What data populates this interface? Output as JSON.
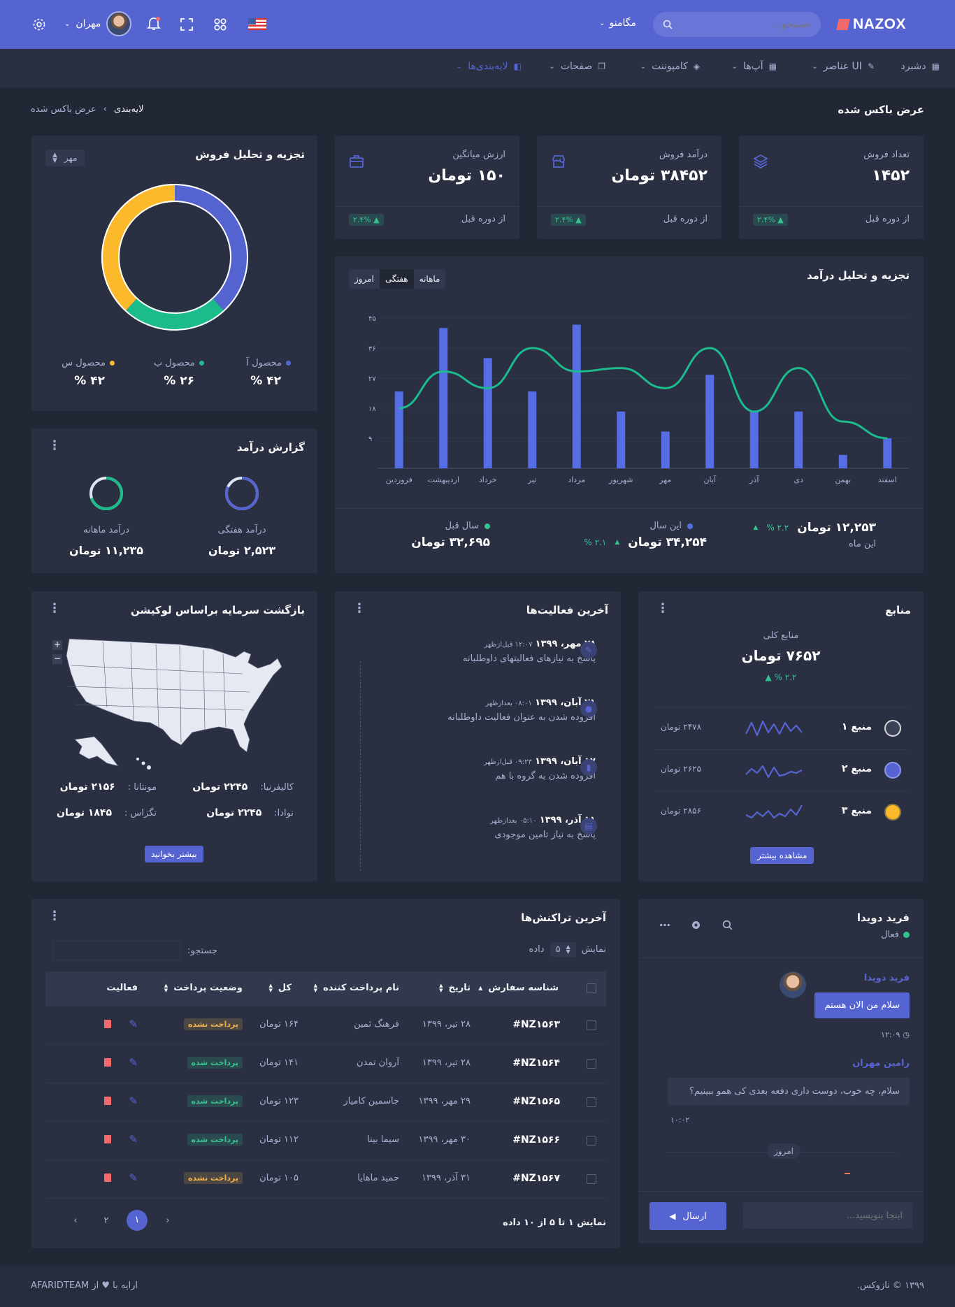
{
  "topbar": {
    "brand": "NAZOX",
    "search_placeholder": "جستجو...",
    "mega_menu": "مگامنو",
    "user_name": "مهران"
  },
  "menu": [
    "دشبرد",
    "UI عناصر",
    "آپ‌ها",
    "کامپوننت",
    "صفحات",
    "لایه‌بندی‌ها"
  ],
  "page": {
    "title": "عرض باکس شده",
    "breadcrumb_parent": "لایه‌بندی",
    "breadcrumb_current": "عرض باکس شده"
  },
  "stats": [
    {
      "label": "تعداد فروش",
      "value": "۱۴۵۲",
      "pct": "۲.۴% ▲",
      "note": "از دوره قبل",
      "icon": "layers-icon"
    },
    {
      "label": "درآمد فروش",
      "value": "۳۸۴۵۲ تومان",
      "pct": "۲.۴% ▲",
      "note": "از دوره قبل",
      "icon": "store-icon"
    },
    {
      "label": "ارزش میانگین",
      "value": "۱۵۰ تومان",
      "pct": "۲.۴% ▲",
      "note": "از دوره قبل",
      "icon": "briefcase-icon"
    }
  ],
  "revenue": {
    "title": "تجزیه و تحلیل درآمد",
    "tabs": [
      "ماهانه",
      "هفتگی",
      "امروز"
    ],
    "active_tab": "هفتگی",
    "summary": [
      {
        "value": "۱۲,۲۵۳ تومان",
        "pct": "۲.۲ %",
        "label": "این ماه"
      },
      {
        "label": "این سال",
        "value": "۳۴,۲۵۴ تومان",
        "pct": "۲.۱ %",
        "dot": "#556ee6"
      },
      {
        "label": "سال قبل",
        "value": "۳۲,۶۹۵ تومان",
        "dot": "#34c38f"
      }
    ]
  },
  "chart_data": {
    "type": "bar",
    "categories": [
      "فروردین",
      "اردیبهشت",
      "خرداد",
      "تیر",
      "مرداد",
      "شهریور",
      "مهر",
      "آبان",
      "آذر",
      "دی",
      "بهمن",
      "اسفند"
    ],
    "series": [
      {
        "type": "bar",
        "values": [
          23,
          42,
          33,
          23,
          43,
          17,
          11,
          28,
          17,
          17,
          4,
          9
        ],
        "color": "#556ee6"
      },
      {
        "type": "line",
        "values": [
          18,
          29,
          24,
          36,
          29,
          30,
          24,
          36,
          17,
          30,
          14,
          9
        ],
        "color": "#1cbb8c"
      }
    ],
    "yticks": [
      "۹",
      "۱۸",
      "۲۷",
      "۳۶",
      "۴۵"
    ],
    "ylim": [
      0,
      45
    ]
  },
  "sales": {
    "title": "تجزیه و تحلیل فروش",
    "month": "مهر",
    "donut": [
      {
        "name": "محصول آ",
        "value": 42,
        "pct": "۴۲ %",
        "color": "#5664d2"
      },
      {
        "name": "محصول ب",
        "value": 26,
        "pct": "۲۶ %",
        "color": "#1cbb8c"
      },
      {
        "name": "محصول س",
        "value": 42,
        "pct": "۴۲ %",
        "color": "#fcb92c"
      }
    ]
  },
  "earning": {
    "title": "گزارش درآمد",
    "items": [
      {
        "label": "درآمد هفتگی",
        "value": "۲,۵۲۳ تومان",
        "level": 0.82,
        "color": "#5664d2"
      },
      {
        "label": "درآمد ماهانه",
        "value": "۱۱,۲۳۵ تومان",
        "level": 0.7,
        "color": "#1cbb8c"
      }
    ]
  },
  "sources": {
    "title": "منابع",
    "total_label": "منابع کلی",
    "total_value": "۷۶۵۲ تومان",
    "total_pct": "۲.۲ % ▲",
    "rows": [
      {
        "name": "منبع ۱",
        "value": "۲۴۷۸ تومان",
        "icon": "coin-icon",
        "color": "#f0f0f0"
      },
      {
        "name": "منبع ۲",
        "value": "۲۶۲۵ تومان",
        "icon": "ethereum-icon",
        "color": "#5664d2"
      },
      {
        "name": "منبع ۳",
        "value": "۲۸۵۶ تومان",
        "icon": "litecoin-icon",
        "color": "#fcb92c"
      }
    ],
    "button": "مشاهده بیشتر"
  },
  "activity": {
    "title": "آخرین فعالیت‌ها",
    "items": [
      {
        "date": "۲۸ مهر، ۱۳۹۹",
        "time": "۱۲:۰۷ قبل‌ازظهر",
        "text": "پاسخ به نیازهای فعالیتهای داوطلبانه",
        "icon": "edit-icon"
      },
      {
        "date": "۲۱ آبان، ۱۳۹۹",
        "time": "۰۸:۰۱ بعدازظهر",
        "text": "افزوده شدن به عنوان فعالیت داوطلبانه",
        "icon": "user-icon"
      },
      {
        "date": "۱۷ آبان، ۱۳۹۹",
        "time": "۰۹:۲۳ قبل‌ازظهر",
        "text": "افزوده شدن به گروه با هم",
        "icon": "chart-icon"
      },
      {
        "date": "۱۱ آذر، ۱۳۹۹",
        "time": "۰۵:۱۰ بعدازظهر",
        "text": "پاسخ به نیاز تامین موجودی",
        "icon": "clipboard-icon"
      }
    ]
  },
  "map": {
    "title": "بازگشت سرمایه براساس لوکیشن",
    "stats": [
      {
        "label": "کالیفرنیا:",
        "value": "۲۲۴۵ تومان"
      },
      {
        "label": "مونتانا :",
        "value": "۲۱۵۶ تومان"
      },
      {
        "label": "نوادا:",
        "value": "۲۲۴۵ تومان"
      },
      {
        "label": "تگزاس :",
        "value": "۱۸۴۵ تومان"
      }
    ],
    "button": "بیشتر بخوانید"
  },
  "chat": {
    "name": "فرید دویدا",
    "status": "فعال",
    "messages": [
      {
        "sender": "فرید دویدا",
        "text": "سلام من الان هستم",
        "time": "۱۲:۰۹"
      },
      {
        "sender": "رامین مهران",
        "text": "سلام، چه خوب، دوست داری دفعه بعدی کی همو ببینیم؟",
        "time": "۱۰:۰۲"
      }
    ],
    "divider": "امروز",
    "input_placeholder": "اینجا بنویسید...",
    "send": "ارسال"
  },
  "transactions": {
    "title": "آخرین تراکنش‌ها",
    "show_label": "نمایش",
    "show_count": "۵",
    "data_label": "داده",
    "search_label": "جستجو:",
    "columns": [
      "شناسه سفارش",
      "تاریخ",
      "نام پرداخت کننده",
      "کل",
      "وضعیت پرداخت",
      "فعالیت"
    ],
    "rows": [
      {
        "id": "#NZ۱۵۶۳",
        "date": "۲۸ تیر، ۱۳۹۹",
        "name": "فرهنگ ثمین",
        "total": "۱۶۴ تومان",
        "status": "پرداخت نشده",
        "paid": false
      },
      {
        "id": "#NZ۱۵۶۴",
        "date": "۲۸ تیر، ۱۳۹۹",
        "name": "آروان تمدن",
        "total": "۱۴۱ تومان",
        "status": "پرداخت شده",
        "paid": true
      },
      {
        "id": "#NZ۱۵۶۵",
        "date": "۲۹ مهر، ۱۳۹۹",
        "name": "جاسمین کامیار",
        "total": "۱۲۳ تومان",
        "status": "پرداخت شده",
        "paid": true
      },
      {
        "id": "#NZ۱۵۶۶",
        "date": "۳۰ مهر، ۱۳۹۹",
        "name": "سیما بینا",
        "total": "۱۱۲ تومان",
        "status": "پرداخت شده",
        "paid": true
      },
      {
        "id": "#NZ۱۵۶۷",
        "date": "۳۱ آذر، ۱۳۹۹",
        "name": "حمید ماهایا",
        "total": "۱۰۵ تومان",
        "status": "پرداخت نشده",
        "paid": false
      }
    ],
    "info": "نمایش ۱ تا ۵ از ۱۰ داده",
    "pages": [
      "۱",
      "۲"
    ]
  },
  "footer": {
    "left": "ارایه با ♥ از AFARIDTEAM",
    "right": "۱۳۹۹ © نازوکس."
  }
}
